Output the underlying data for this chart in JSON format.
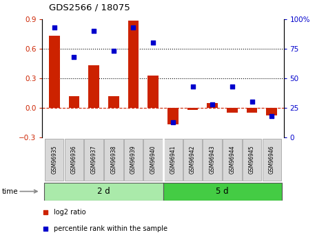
{
  "title": "GDS2566 / 18075",
  "samples": [
    "GSM96935",
    "GSM96936",
    "GSM96937",
    "GSM96938",
    "GSM96939",
    "GSM96940",
    "GSM96941",
    "GSM96942",
    "GSM96943",
    "GSM96944",
    "GSM96945",
    "GSM96946"
  ],
  "log2_ratio": [
    0.73,
    0.12,
    0.43,
    0.12,
    0.88,
    0.33,
    -0.17,
    -0.02,
    0.05,
    -0.05,
    -0.05,
    -0.08
  ],
  "percentile_rank": [
    93,
    68,
    90,
    73,
    93,
    80,
    13,
    43,
    28,
    43,
    30,
    18
  ],
  "groups": [
    {
      "label": "2 d",
      "start": 0,
      "end": 6,
      "color": "#aaeaaa"
    },
    {
      "label": "5 d",
      "start": 6,
      "end": 12,
      "color": "#44cc44"
    }
  ],
  "time_label": "time",
  "bar_color": "#cc2200",
  "dot_color": "#0000cc",
  "ylim_left": [
    -0.3,
    0.9
  ],
  "ylim_right": [
    0,
    100
  ],
  "yticks_left": [
    -0.3,
    0.0,
    0.3,
    0.6,
    0.9
  ],
  "yticks_right": [
    0,
    25,
    50,
    75,
    100
  ],
  "hlines": [
    0.3,
    0.6
  ],
  "legend_items": [
    {
      "label": "log2 ratio",
      "color": "#cc2200"
    },
    {
      "label": "percentile rank within the sample",
      "color": "#0000cc"
    }
  ]
}
